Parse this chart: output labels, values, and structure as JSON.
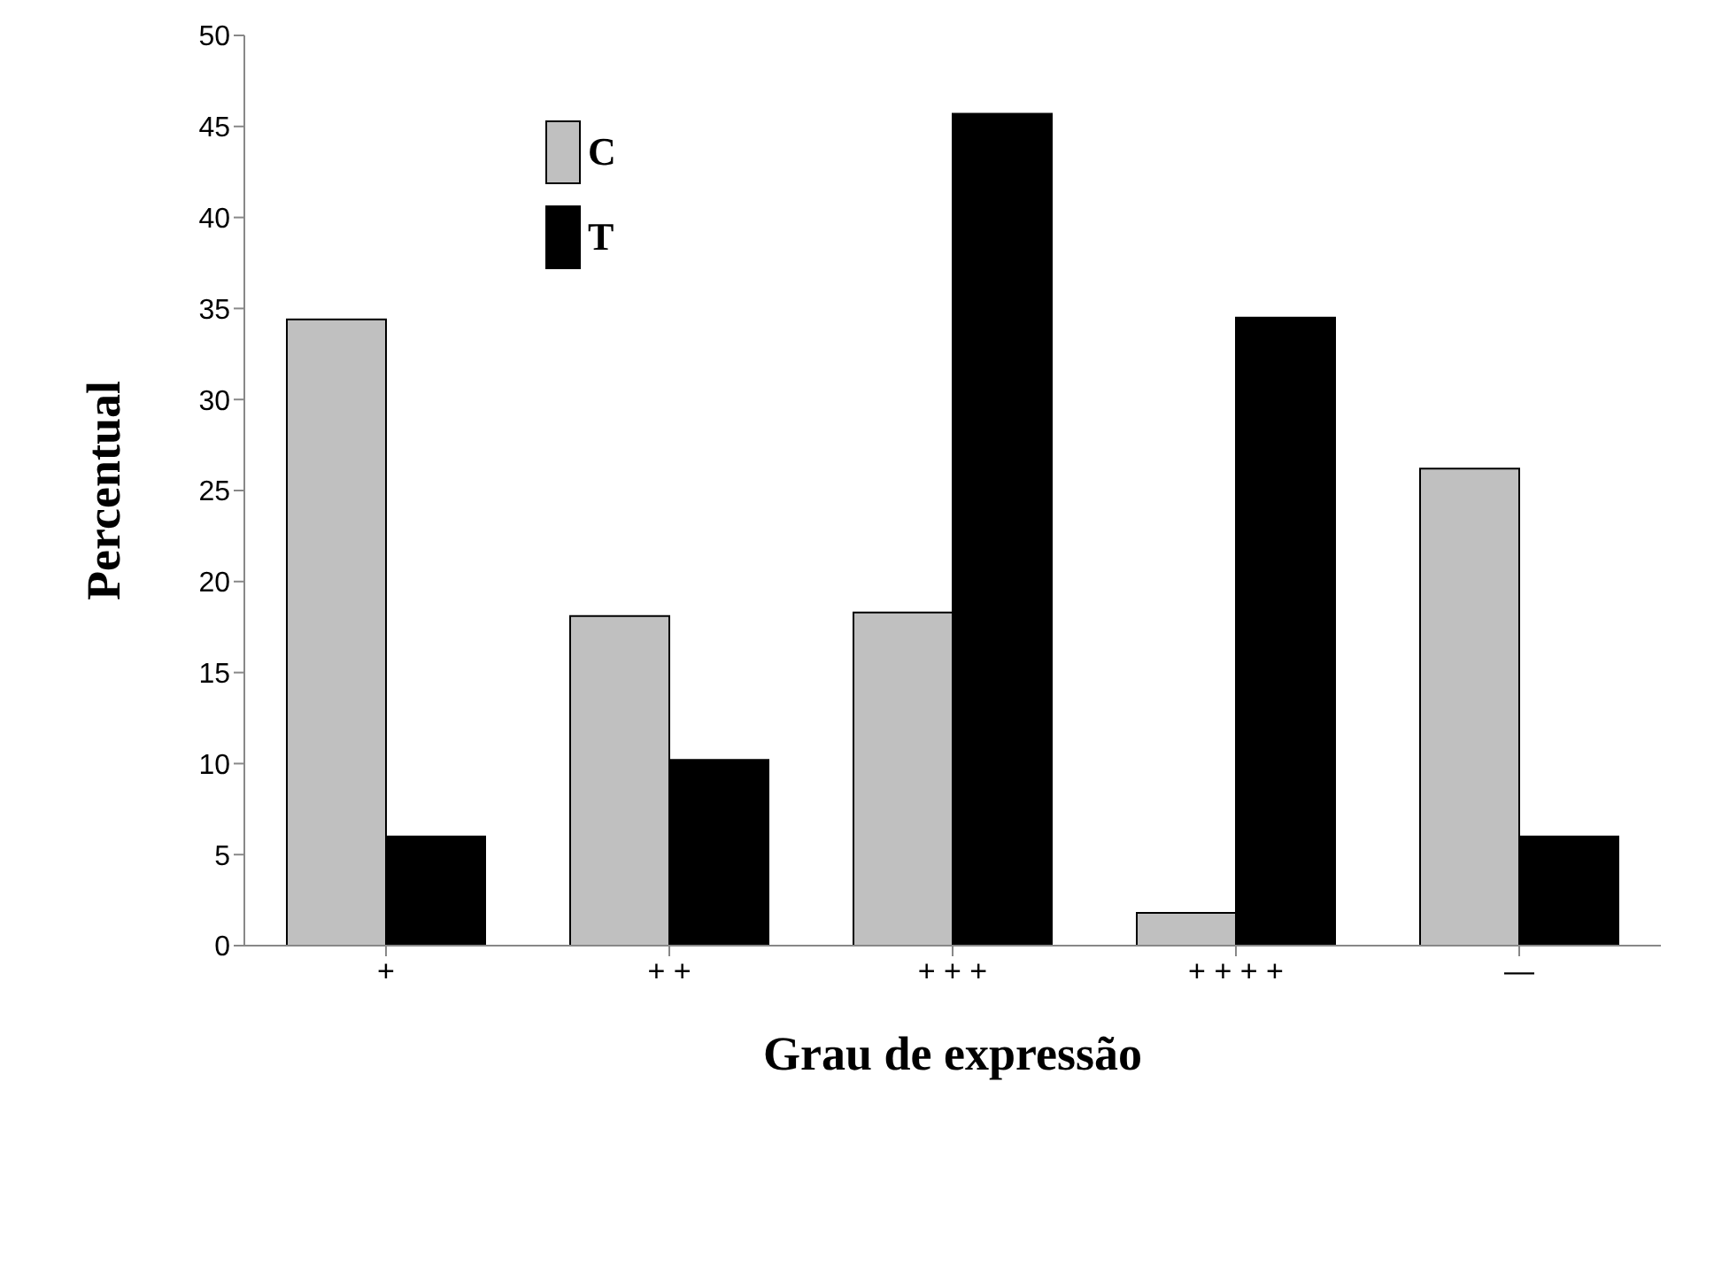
{
  "chart_data": {
    "type": "bar",
    "xlabel": "Grau de expressão",
    "ylabel": "Percentual",
    "categories": [
      "+",
      "+ +",
      "+ + +",
      "+ + + +",
      "—"
    ],
    "series": [
      {
        "name": "C",
        "color": "#c0c0c0",
        "values": [
          34.4,
          18.1,
          18.3,
          1.8,
          26.2
        ]
      },
      {
        "name": "T",
        "color": "#000000",
        "values": [
          6,
          10.2,
          45.7,
          34.5,
          6
        ]
      }
    ],
    "ylim": [
      0,
      50
    ],
    "yticks": [
      0,
      5,
      10,
      15,
      20,
      25,
      30,
      35,
      40,
      45,
      50
    ],
    "grid": false,
    "legend": "top left"
  }
}
